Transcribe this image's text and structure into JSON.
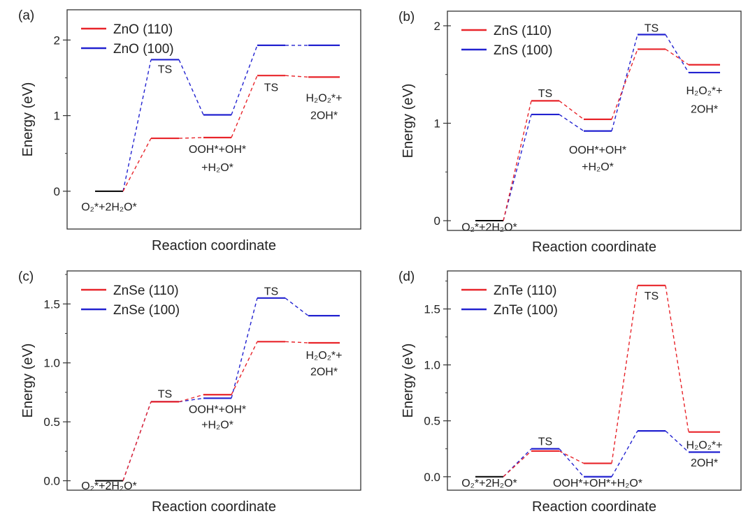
{
  "colors": {
    "series1": "#e8242a",
    "series2": "#2222d0",
    "neutral": "#000000"
  },
  "chart_data": [
    {
      "type": "line",
      "panel_label": "(a)",
      "xlabel": "Reaction coordinate",
      "ylabel": "Energy (eV)",
      "ylim": [
        -0.5,
        2.4
      ],
      "yticks": [
        "0",
        "1",
        "2"
      ],
      "ytick_values": [
        0,
        1,
        2
      ],
      "series": [
        {
          "name": "ZnO (110)",
          "values": [
            0.0,
            0.7,
            0.71,
            1.53,
            1.51
          ]
        },
        {
          "name": "ZnO (100)",
          "values": [
            0.0,
            1.74,
            1.01,
            1.93,
            1.93
          ]
        }
      ],
      "state_labels": [
        {
          "text": "O₂*+2H₂O*",
          "state": 0,
          "value": -0.2
        },
        {
          "text": "TS",
          "state": 1,
          "value": 1.62
        },
        {
          "text": "OOH*+OH*",
          "state": 2,
          "value": 0.56
        },
        {
          "text": "+H₂O*",
          "state": 2,
          "value": 0.32
        },
        {
          "text": "TS",
          "state": 3,
          "value": 1.38
        },
        {
          "text": "H₂O₂*+",
          "state": 4,
          "value": 1.24
        },
        {
          "text": "2OH*",
          "state": 4,
          "value": 1.01
        }
      ]
    },
    {
      "type": "line",
      "panel_label": "(b)",
      "xlabel": "Reaction coordinate",
      "ylabel": "Energy (eV)",
      "ylim": [
        -0.1,
        2.15
      ],
      "yticks": [
        "0",
        "1",
        "2"
      ],
      "ytick_values": [
        0,
        1,
        2
      ],
      "series": [
        {
          "name": "ZnS (110)",
          "values": [
            0.0,
            1.23,
            1.04,
            1.76,
            1.6
          ]
        },
        {
          "name": "ZnS (100)",
          "values": [
            0.0,
            1.09,
            0.92,
            1.91,
            1.52
          ]
        }
      ],
      "state_labels": [
        {
          "text": "O₂*+2H₂O*",
          "state": 0,
          "value": -0.06
        },
        {
          "text": "TS",
          "state": 1,
          "value": 1.31
        },
        {
          "text": "OOH*+OH*",
          "state": 2,
          "value": 0.73
        },
        {
          "text": "+H₂O*",
          "state": 2,
          "value": 0.56
        },
        {
          "text": "TS",
          "state": 3,
          "value": 1.98
        },
        {
          "text": "H₂O₂*+",
          "state": 4,
          "value": 1.34
        },
        {
          "text": "2OH*",
          "state": 4,
          "value": 1.15
        }
      ]
    },
    {
      "type": "line",
      "panel_label": "(c)",
      "xlabel": "Reaction coordinate",
      "ylabel": "Energy (eV)",
      "ylim": [
        -0.08,
        1.78
      ],
      "yticks": [
        "0.0",
        "0.5",
        "1.0",
        "1.5"
      ],
      "ytick_values": [
        0,
        0.5,
        1.0,
        1.5
      ],
      "series": [
        {
          "name": "ZnSe (110)",
          "values": [
            0.0,
            0.67,
            0.73,
            1.18,
            1.17
          ]
        },
        {
          "name": "ZnSe (100)",
          "values": [
            0.0,
            0.67,
            0.7,
            1.55,
            1.4
          ]
        }
      ],
      "state_labels": [
        {
          "text": "O₂*+2H₂O*",
          "state": 0,
          "value": -0.04
        },
        {
          "text": "TS",
          "state": 1,
          "value": 0.74
        },
        {
          "text": "OOH*+OH*",
          "state": 2,
          "value": 0.61
        },
        {
          "text": "+H₂O*",
          "state": 2,
          "value": 0.48
        },
        {
          "text": "TS",
          "state": 3,
          "value": 1.61
        },
        {
          "text": "H₂O₂*+",
          "state": 4,
          "value": 1.07
        },
        {
          "text": "2OH*",
          "state": 4,
          "value": 0.93
        }
      ]
    },
    {
      "type": "line",
      "panel_label": "(d)",
      "xlabel": "Reaction coordinate",
      "ylabel": "Energy (eV)",
      "ylim": [
        -0.12,
        1.84
      ],
      "yticks": [
        "0.0",
        "0.5",
        "1.0",
        "1.5"
      ],
      "ytick_values": [
        0,
        0.5,
        1.0,
        1.5
      ],
      "series": [
        {
          "name": "ZnTe (110)",
          "values": [
            0.0,
            0.23,
            0.12,
            1.71,
            0.4
          ]
        },
        {
          "name": "ZnTe (100)",
          "values": [
            0.0,
            0.25,
            0.0,
            0.41,
            0.22
          ]
        }
      ],
      "state_labels": [
        {
          "text": "O₂*+2H₂O*",
          "state": 0,
          "value": -0.05
        },
        {
          "text": "TS",
          "state": 1,
          "value": 0.32
        },
        {
          "text": "OOH*+OH*+H₂O*",
          "state": 2,
          "value": -0.05
        },
        {
          "text": "TS",
          "state": 3,
          "value": 1.62
        },
        {
          "text": "H₂O₂*+",
          "state": 4,
          "value": 0.29
        },
        {
          "text": "2OH*",
          "state": 4,
          "value": 0.13
        }
      ]
    }
  ]
}
